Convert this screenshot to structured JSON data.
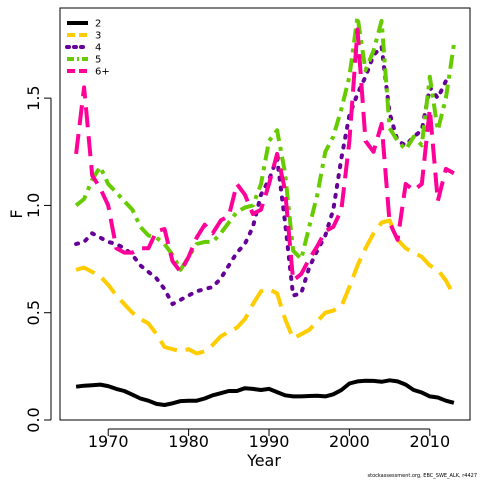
{
  "chart_data": {
    "type": "line",
    "xlabel": "Year",
    "ylabel": "F",
    "xlim": [
      1964,
      2015
    ],
    "ylim": [
      0,
      1.92
    ],
    "xticks": [
      1970,
      1980,
      1990,
      2000,
      2010
    ],
    "xtick_labels": [
      "1970",
      "1980",
      "1990",
      "2000",
      "2010"
    ],
    "yticks": [
      0,
      0.5,
      1.0,
      1.5
    ],
    "ytick_labels": [
      "0.0",
      "0.5",
      "1.0",
      "1.5"
    ],
    "grid": false,
    "legend_position": "top-left",
    "x": [
      1966,
      1967,
      1968,
      1969,
      1970,
      1971,
      1972,
      1973,
      1974,
      1975,
      1976,
      1977,
      1978,
      1979,
      1980,
      1981,
      1982,
      1983,
      1984,
      1985,
      1986,
      1987,
      1988,
      1989,
      1990,
      1991,
      1992,
      1993,
      1994,
      1995,
      1996,
      1997,
      1998,
      1999,
      2000,
      2001,
      2002,
      2003,
      2004,
      2005,
      2006,
      2007,
      2008,
      2009,
      2010,
      2011,
      2012,
      2013
    ],
    "series": [
      {
        "name": "2",
        "color": "#000000",
        "dash": "solid",
        "values": [
          0.155,
          0.16,
          0.162,
          0.165,
          0.158,
          0.145,
          0.135,
          0.118,
          0.1,
          0.09,
          0.075,
          0.07,
          0.078,
          0.088,
          0.09,
          0.09,
          0.1,
          0.115,
          0.125,
          0.135,
          0.135,
          0.148,
          0.145,
          0.14,
          0.145,
          0.13,
          0.115,
          0.11,
          0.11,
          0.112,
          0.113,
          0.11,
          0.12,
          0.14,
          0.17,
          0.18,
          0.183,
          0.182,
          0.178,
          0.185,
          0.18,
          0.165,
          0.14,
          0.128,
          0.11,
          0.105,
          0.09,
          0.08
        ]
      },
      {
        "name": "3",
        "color": "#ffcc00",
        "dash": "longdash",
        "values": [
          0.7,
          0.71,
          0.69,
          0.67,
          0.63,
          0.58,
          0.54,
          0.5,
          0.47,
          0.45,
          0.4,
          0.34,
          0.33,
          0.32,
          0.33,
          0.31,
          0.32,
          0.35,
          0.39,
          0.41,
          0.43,
          0.47,
          0.54,
          0.6,
          0.61,
          0.59,
          0.47,
          0.38,
          0.4,
          0.42,
          0.46,
          0.5,
          0.51,
          0.53,
          0.62,
          0.72,
          0.8,
          0.87,
          0.92,
          0.93,
          0.84,
          0.8,
          0.78,
          0.76,
          0.72,
          0.7,
          0.65,
          0.58
        ]
      },
      {
        "name": "4",
        "color": "#660099",
        "dash": "dotted",
        "values": [
          0.82,
          0.83,
          0.87,
          0.85,
          0.83,
          0.82,
          0.8,
          0.77,
          0.72,
          0.69,
          0.66,
          0.61,
          0.54,
          0.56,
          0.58,
          0.6,
          0.61,
          0.62,
          0.66,
          0.72,
          0.78,
          0.82,
          0.9,
          1.05,
          1.12,
          1.22,
          0.92,
          0.58,
          0.59,
          0.71,
          0.79,
          0.86,
          0.98,
          1.22,
          1.42,
          1.52,
          1.6,
          1.7,
          1.74,
          1.43,
          1.3,
          1.28,
          1.32,
          1.35,
          1.55,
          1.5,
          1.58,
          null
        ]
      },
      {
        "name": "5",
        "color": "#66cc00",
        "dash": "dashdot",
        "values": [
          1.0,
          1.03,
          1.12,
          1.18,
          1.1,
          1.06,
          1.02,
          0.98,
          0.9,
          0.86,
          0.85,
          0.82,
          0.77,
          0.7,
          0.76,
          0.82,
          0.83,
          0.83,
          0.87,
          0.92,
          0.97,
          0.99,
          1.0,
          1.1,
          1.3,
          1.35,
          1.15,
          0.79,
          0.75,
          0.9,
          1.05,
          1.25,
          1.32,
          1.45,
          1.6,
          1.88,
          1.63,
          1.72,
          1.86,
          1.36,
          1.3,
          1.26,
          1.32,
          1.28,
          1.6,
          1.35,
          1.5,
          1.75
        ]
      },
      {
        "name": "6+",
        "color": "#ff0099",
        "dash": "longdash",
        "values": [
          1.24,
          1.55,
          1.14,
          1.08,
          1.0,
          0.8,
          0.78,
          0.78,
          0.8,
          0.8,
          0.88,
          0.89,
          0.74,
          0.69,
          0.76,
          0.85,
          0.91,
          0.87,
          0.93,
          0.95,
          1.1,
          1.05,
          0.96,
          0.98,
          1.1,
          1.24,
          1.07,
          0.65,
          0.68,
          0.75,
          0.81,
          0.88,
          0.9,
          0.98,
          1.3,
          1.82,
          1.3,
          1.25,
          1.38,
          0.92,
          0.84,
          1.1,
          1.07,
          1.1,
          1.45,
          1.02,
          1.17,
          1.15
        ]
      }
    ]
  },
  "footnote": "stockassessment.org, EBC_SWE_ALK, r4427"
}
